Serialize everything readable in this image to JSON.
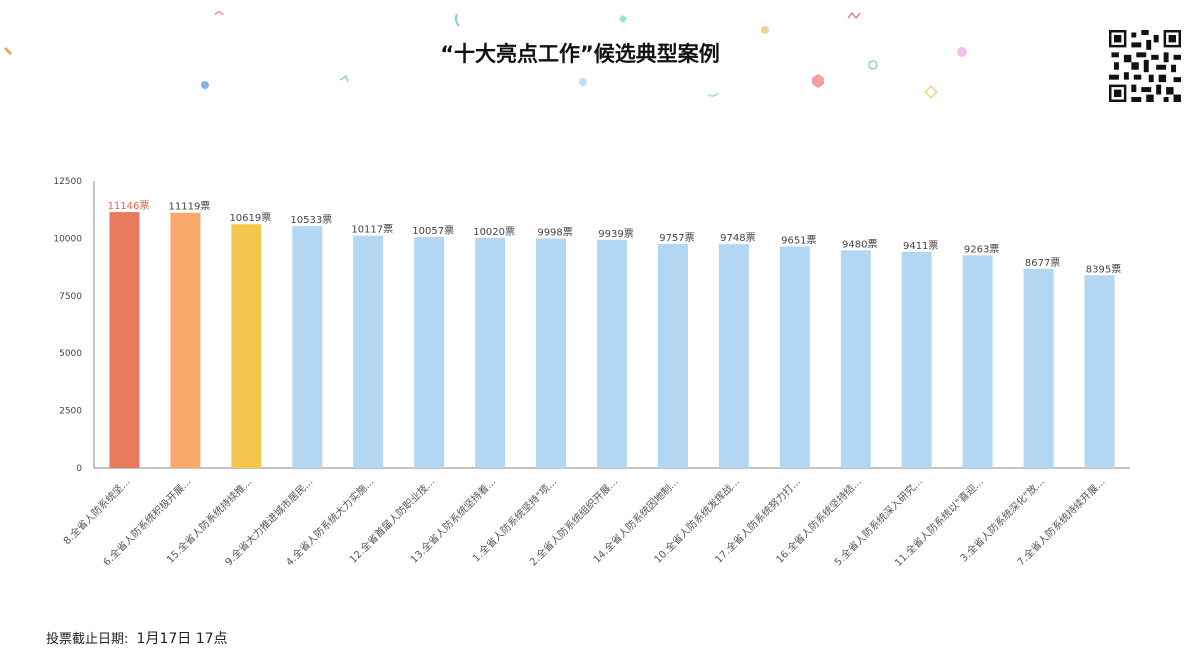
{
  "page": {
    "title": "“十大亮点工作”候选典型案例",
    "deadline_label": "投票截止日期:",
    "deadline_value": "1月17日 17点"
  },
  "colors": {
    "highlight_1": "#e87a5d",
    "highlight_2": "#f9a86c",
    "highlight_3": "#f5c64e",
    "default_bar": "#b3d6f3",
    "axis": "#888888"
  },
  "icons": {
    "qr": "qr-code-icon"
  },
  "chart_data": {
    "type": "bar",
    "title": "",
    "xlabel": "",
    "ylabel": "",
    "ylim": [
      0,
      12500
    ],
    "yticks": [
      0,
      2500,
      5000,
      7500,
      10000,
      12500
    ],
    "grid": false,
    "value_suffix": "票",
    "categories": [
      "8.全省人防系统坚...",
      "6.全省人防系统积极开展...",
      "15.全省人防系统持续推...",
      "9.全省大力推进城市居民...",
      "4.全省人防系统大力实施...",
      "12.全省首届人防职业技...",
      "13.全省人防系统坚持着...",
      "1.全省人防系统坚持\"项...",
      "2.全省人防系统组织开展...",
      "14.全省人防系统因地制...",
      "10.全省人防系统发挥战...",
      "17.全省人防系统努力打...",
      "16.全省人防系统坚持结...",
      "5.全省人防系统深入研究...",
      "11.全省人防系统以\"喜迎...",
      "3.全省人防系统深化\"放...",
      "7.全省人防系统持续开展..."
    ],
    "values": [
      11146,
      11119,
      10619,
      10533,
      10117,
      10057,
      10020,
      9998,
      9939,
      9757,
      9748,
      9651,
      9480,
      9411,
      9263,
      8677,
      8395
    ]
  }
}
